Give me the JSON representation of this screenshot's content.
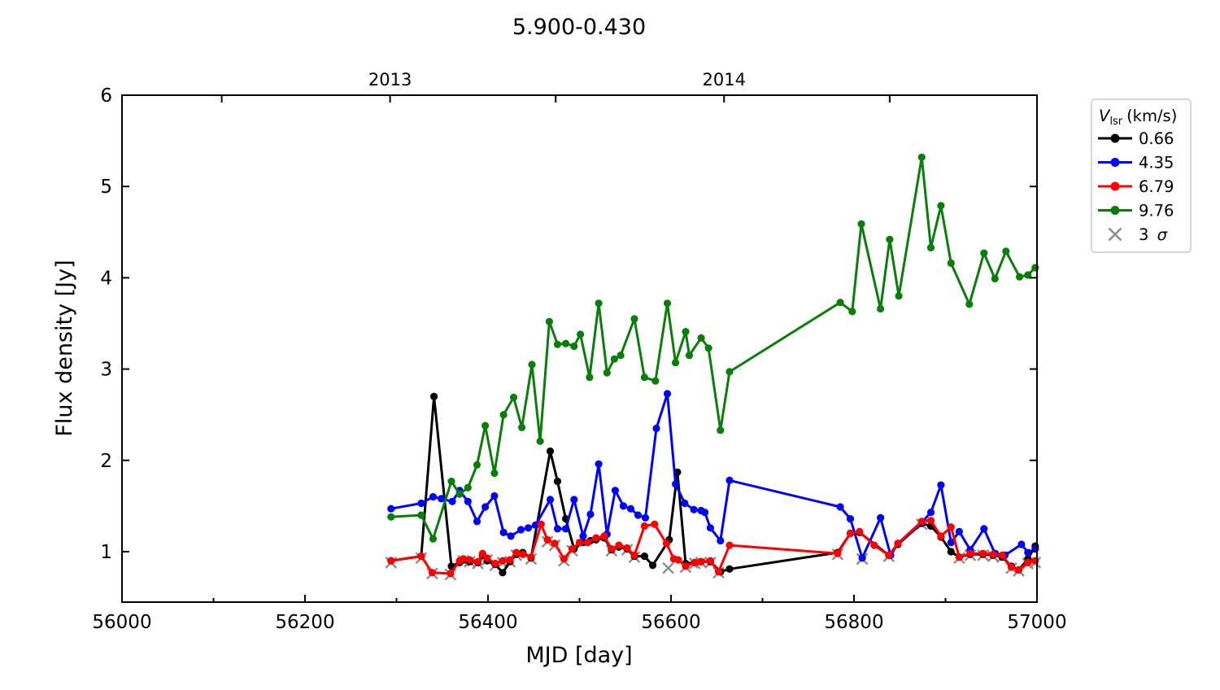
{
  "title": "5.900-0.430",
  "chart_data": {
    "type": "line",
    "title": "5.900-0.430",
    "xlabel": "MJD [day]",
    "ylabel": "Flux density [Jy]",
    "xlim": [
      56000,
      57000
    ],
    "ylim": [
      0.447,
      6.0
    ],
    "grid": false,
    "legend_position": "outside-right",
    "x_major_ticks": [
      56000,
      56200,
      56400,
      56600,
      56800,
      57000
    ],
    "x_minor_ticks": [
      56100,
      56300,
      56500,
      56700,
      56900
    ],
    "y_major_ticks": [
      1,
      2,
      3,
      4,
      5,
      6
    ],
    "top_year_ticks": [
      {
        "mjd": 56109,
        "label": ""
      },
      {
        "mjd": 56293,
        "label": "2013"
      },
      {
        "mjd": 56474,
        "label": ""
      },
      {
        "mjd": 56658,
        "label": "2014"
      },
      {
        "mjd": 56839,
        "label": ""
      }
    ],
    "series": [
      {
        "name": "0.66",
        "color": "#000000",
        "marker": "circle",
        "points": [
          [
            56294,
            0.9
          ],
          [
            56327,
            0.95
          ],
          [
            56341,
            2.7
          ],
          [
            56360,
            0.84
          ],
          [
            56369,
            0.88
          ],
          [
            56380,
            0.89
          ],
          [
            56389,
            0.88
          ],
          [
            56394,
            0.96
          ],
          [
            56399,
            0.9
          ],
          [
            56408,
            0.86
          ],
          [
            56416,
            0.77
          ],
          [
            56424,
            0.89
          ],
          [
            56431,
            0.97
          ],
          [
            56438,
            0.99
          ],
          [
            56447,
            0.93
          ],
          [
            56468,
            2.1
          ],
          [
            56476,
            1.77
          ],
          [
            56485,
            1.36
          ],
          [
            56494,
            1.03
          ],
          [
            56504,
            1.1
          ],
          [
            56512,
            1.12
          ],
          [
            56518,
            1.13
          ],
          [
            56527,
            1.15
          ],
          [
            56535,
            1.02
          ],
          [
            56543,
            1.05
          ],
          [
            56552,
            1.03
          ],
          [
            56560,
            0.95
          ],
          [
            56571,
            0.95
          ],
          [
            56580,
            0.85
          ],
          [
            56598,
            1.13
          ],
          [
            56607,
            1.87
          ],
          [
            56616,
            0.87
          ],
          [
            56626,
            0.88
          ],
          [
            56633,
            0.89
          ],
          [
            56643,
            0.89
          ],
          [
            56654,
            0.78
          ],
          [
            56664,
            0.81
          ],
          [
            56782,
            0.99
          ],
          [
            56796,
            1.2
          ],
          [
            56806,
            1.21
          ],
          [
            56838,
            0.96
          ],
          [
            56848,
            1.08
          ],
          [
            56874,
            1.31
          ],
          [
            56884,
            1.28
          ],
          [
            56895,
            1.16
          ],
          [
            56906,
            1.0
          ],
          [
            56915,
            0.94
          ],
          [
            56927,
            0.97
          ],
          [
            56941,
            0.97
          ],
          [
            56952,
            0.96
          ],
          [
            56962,
            0.94
          ],
          [
            56972,
            0.84
          ],
          [
            56980,
            0.8
          ],
          [
            56990,
            0.92
          ],
          [
            56998,
            1.06
          ]
        ]
      },
      {
        "name": "4.35",
        "color": "#0000ff",
        "marker": "circle",
        "points": [
          [
            56294,
            1.47
          ],
          [
            56327,
            1.53
          ],
          [
            56340,
            1.6
          ],
          [
            56349,
            1.58
          ],
          [
            56361,
            1.55
          ],
          [
            56369,
            1.67
          ],
          [
            56378,
            1.55
          ],
          [
            56388,
            1.33
          ],
          [
            56397,
            1.49
          ],
          [
            56407,
            1.61
          ],
          [
            56417,
            1.21
          ],
          [
            56425,
            1.17
          ],
          [
            56436,
            1.24
          ],
          [
            56444,
            1.26
          ],
          [
            56452,
            1.29
          ],
          [
            56468,
            1.57
          ],
          [
            56476,
            1.25
          ],
          [
            56485,
            1.25
          ],
          [
            56494,
            1.57
          ],
          [
            56504,
            1.17
          ],
          [
            56512,
            1.41
          ],
          [
            56521,
            1.96
          ],
          [
            56530,
            1.19
          ],
          [
            56539,
            1.67
          ],
          [
            56548,
            1.5
          ],
          [
            56556,
            1.47
          ],
          [
            56564,
            1.4
          ],
          [
            56572,
            1.37
          ],
          [
            56584,
            2.35
          ],
          [
            56596,
            2.73
          ],
          [
            56605,
            1.74
          ],
          [
            56615,
            1.53
          ],
          [
            56625,
            1.46
          ],
          [
            56633,
            1.45
          ],
          [
            56637,
            1.43
          ],
          [
            56643,
            1.26
          ],
          [
            56654,
            1.12
          ],
          [
            56664,
            1.78
          ],
          [
            56785,
            1.49
          ],
          [
            56796,
            1.36
          ],
          [
            56809,
            0.93
          ],
          [
            56829,
            1.37
          ],
          [
            56840,
            0.96
          ],
          [
            56848,
            1.09
          ],
          [
            56874,
            1.32
          ],
          [
            56884,
            1.43
          ],
          [
            56895,
            1.73
          ],
          [
            56906,
            1.1
          ],
          [
            56915,
            1.22
          ],
          [
            56927,
            1.02
          ],
          [
            56942,
            1.25
          ],
          [
            56954,
            0.98
          ],
          [
            56965,
            0.96
          ],
          [
            56983,
            1.08
          ],
          [
            56990,
            0.99
          ],
          [
            56998,
            1.03
          ]
        ]
      },
      {
        "name": "6.79",
        "color": "#ff0000",
        "marker": "circle",
        "points": [
          [
            56294,
            0.9
          ],
          [
            56327,
            0.95
          ],
          [
            56339,
            0.77
          ],
          [
            56359,
            0.76
          ],
          [
            56369,
            0.9
          ],
          [
            56373,
            0.92
          ],
          [
            56380,
            0.91
          ],
          [
            56389,
            0.89
          ],
          [
            56394,
            0.98
          ],
          [
            56399,
            0.93
          ],
          [
            56408,
            0.87
          ],
          [
            56416,
            0.9
          ],
          [
            56424,
            0.91
          ],
          [
            56431,
            0.99
          ],
          [
            56438,
            0.97
          ],
          [
            56447,
            0.94
          ],
          [
            56458,
            1.3
          ],
          [
            56465,
            1.13
          ],
          [
            56473,
            1.09
          ],
          [
            56483,
            0.92
          ],
          [
            56492,
            1.03
          ],
          [
            56500,
            1.1
          ],
          [
            56509,
            1.1
          ],
          [
            56518,
            1.15
          ],
          [
            56527,
            1.17
          ],
          [
            56535,
            1.03
          ],
          [
            56543,
            1.07
          ],
          [
            56552,
            1.04
          ],
          [
            56560,
            0.96
          ],
          [
            56571,
            1.28
          ],
          [
            56582,
            1.3
          ],
          [
            56595,
            1.09
          ],
          [
            56603,
            0.92
          ],
          [
            56608,
            0.91
          ],
          [
            56616,
            0.84
          ],
          [
            56626,
            0.88
          ],
          [
            56633,
            0.89
          ],
          [
            56643,
            0.9
          ],
          [
            56652,
            0.78
          ],
          [
            56664,
            1.07
          ],
          [
            56782,
            0.98
          ],
          [
            56796,
            1.2
          ],
          [
            56806,
            1.22
          ],
          [
            56822,
            1.07
          ],
          [
            56838,
            0.96
          ],
          [
            56848,
            1.09
          ],
          [
            56874,
            1.33
          ],
          [
            56884,
            1.34
          ],
          [
            56895,
            1.17
          ],
          [
            56906,
            1.27
          ],
          [
            56915,
            0.94
          ],
          [
            56927,
            0.98
          ],
          [
            56941,
            0.98
          ],
          [
            56952,
            0.97
          ],
          [
            56962,
            0.96
          ],
          [
            56972,
            0.83
          ],
          [
            56980,
            0.8
          ],
          [
            56990,
            0.88
          ],
          [
            56998,
            0.9
          ]
        ]
      },
      {
        "name": "9.76",
        "color": "#0a7d0a",
        "marker": "circle",
        "points": [
          [
            56294,
            1.38
          ],
          [
            56327,
            1.4
          ],
          [
            56340,
            1.14
          ],
          [
            56360,
            1.77
          ],
          [
            56369,
            1.63
          ],
          [
            56378,
            1.7
          ],
          [
            56388,
            1.95
          ],
          [
            56397,
            2.38
          ],
          [
            56407,
            1.86
          ],
          [
            56417,
            2.5
          ],
          [
            56428,
            2.69
          ],
          [
            56437,
            2.36
          ],
          [
            56448,
            3.05
          ],
          [
            56457,
            2.21
          ],
          [
            56467,
            3.52
          ],
          [
            56476,
            3.27
          ],
          [
            56485,
            3.28
          ],
          [
            56494,
            3.25
          ],
          [
            56501,
            3.38
          ],
          [
            56511,
            2.91
          ],
          [
            56521,
            3.72
          ],
          [
            56530,
            2.96
          ],
          [
            56538,
            3.11
          ],
          [
            56545,
            3.15
          ],
          [
            56560,
            3.55
          ],
          [
            56571,
            2.91
          ],
          [
            56583,
            2.87
          ],
          [
            56596,
            3.72
          ],
          [
            56605,
            3.07
          ],
          [
            56616,
            3.41
          ],
          [
            56620,
            3.15
          ],
          [
            56633,
            3.34
          ],
          [
            56641,
            3.23
          ],
          [
            56654,
            2.33
          ],
          [
            56664,
            2.97
          ],
          [
            56785,
            3.73
          ],
          [
            56798,
            3.63
          ],
          [
            56808,
            4.59
          ],
          [
            56829,
            3.66
          ],
          [
            56839,
            4.42
          ],
          [
            56849,
            3.8
          ],
          [
            56874,
            5.32
          ],
          [
            56884,
            4.33
          ],
          [
            56895,
            4.79
          ],
          [
            56906,
            4.16
          ],
          [
            56926,
            3.71
          ],
          [
            56942,
            4.27
          ],
          [
            56954,
            3.99
          ],
          [
            56966,
            4.29
          ],
          [
            56981,
            4.01
          ],
          [
            56990,
            4.03
          ],
          [
            56998,
            4.11
          ]
        ]
      },
      {
        "name": "3 σ",
        "color": "#8c8c8c",
        "marker": "x",
        "line": false,
        "points": [
          [
            56294,
            0.88
          ],
          [
            56327,
            0.93
          ],
          [
            56339,
            0.76
          ],
          [
            56359,
            0.75
          ],
          [
            56373,
            0.9
          ],
          [
            56380,
            0.89
          ],
          [
            56389,
            0.87
          ],
          [
            56399,
            0.91
          ],
          [
            56408,
            0.85
          ],
          [
            56416,
            0.88
          ],
          [
            56424,
            0.89
          ],
          [
            56431,
            0.96
          ],
          [
            56447,
            0.92
          ],
          [
            56465,
            1.11
          ],
          [
            56473,
            1.07
          ],
          [
            56483,
            0.9
          ],
          [
            56492,
            1.01
          ],
          [
            56535,
            1.01
          ],
          [
            56552,
            1.02
          ],
          [
            56560,
            0.94
          ],
          [
            56597,
            0.82
          ],
          [
            56616,
            0.83
          ],
          [
            56626,
            0.87
          ],
          [
            56633,
            0.88
          ],
          [
            56643,
            0.88
          ],
          [
            56652,
            0.77
          ],
          [
            56782,
            0.97
          ],
          [
            56809,
            0.92
          ],
          [
            56838,
            0.95
          ],
          [
            56874,
            1.3
          ],
          [
            56915,
            0.93
          ],
          [
            56927,
            0.96
          ],
          [
            56941,
            0.96
          ],
          [
            56952,
            0.95
          ],
          [
            56962,
            0.94
          ],
          [
            56972,
            0.82
          ],
          [
            56980,
            0.79
          ],
          [
            56990,
            0.87
          ],
          [
            56998,
            0.88
          ]
        ]
      }
    ]
  },
  "legend": {
    "title_var": "V",
    "title_sub": "lsr",
    "title_unit": "(km/s)",
    "entries": [
      {
        "label": "0.66",
        "color": "#000000"
      },
      {
        "label": "4.35",
        "color": "#0000ff"
      },
      {
        "label": "6.79",
        "color": "#ff0000"
      },
      {
        "label": "9.76",
        "color": "#0a7d0a"
      }
    ],
    "sigma": {
      "prefix": "3",
      "symbol": "σ",
      "color": "#8c8c8c"
    }
  }
}
